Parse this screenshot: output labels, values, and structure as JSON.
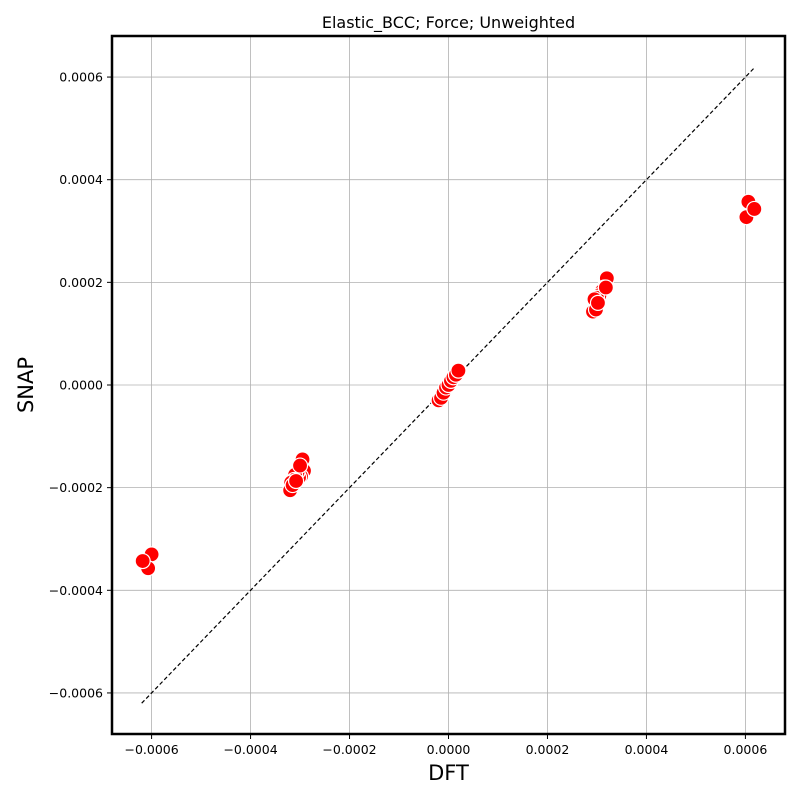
{
  "chart_data": {
    "type": "scatter",
    "title": "Elastic_BCC; Force; Unweighted",
    "xlabel": "DFT",
    "ylabel": "SNAP",
    "xlim": [
      -0.00068,
      0.00068
    ],
    "ylim": [
      -0.00068,
      0.00068
    ],
    "x_ticks": [
      "−0.0006",
      "−0.0004",
      "−0.0002",
      "0.0000",
      "0.0002",
      "0.0004",
      "0.0006"
    ],
    "y_ticks": [
      "−0.0006",
      "−0.0004",
      "−0.0002",
      "0.0000",
      "0.0002",
      "0.0004",
      "0.0006"
    ],
    "tick_values": [
      -0.0006,
      -0.0004,
      -0.0002,
      0.0,
      0.0002,
      0.0004,
      0.0006
    ],
    "grid": true,
    "marker_color": "#ff0000",
    "marker_edge_color": "#ffffff",
    "reference_line": {
      "style": "dashed",
      "color": "#000000",
      "from": [
        -0.00062,
        -0.00062
      ],
      "to": [
        0.00062,
        0.00062
      ]
    },
    "points": [
      {
        "x": -0.0006,
        "y": -0.00033
      },
      {
        "x": -0.000607,
        "y": -0.000357
      },
      {
        "x": -0.000618,
        "y": -0.000343
      },
      {
        "x": -0.000295,
        "y": -0.000145
      },
      {
        "x": -0.000292,
        "y": -0.000167
      },
      {
        "x": -0.000298,
        "y": -0.000178
      },
      {
        "x": -0.000302,
        "y": -0.00018
      },
      {
        "x": -0.000305,
        "y": -0.00017
      },
      {
        "x": -0.00031,
        "y": -0.000175
      },
      {
        "x": -0.000312,
        "y": -0.000185
      },
      {
        "x": -0.000318,
        "y": -0.00019
      },
      {
        "x": -0.00032,
        "y": -0.000205
      },
      {
        "x": -0.000315,
        "y": -0.000195
      },
      {
        "x": -0.000308,
        "y": -0.000187
      },
      {
        "x": -0.0003,
        "y": -0.000157
      },
      {
        "x": -2e-05,
        "y": -3e-05
      },
      {
        "x": -1.5e-05,
        "y": -2.5e-05
      },
      {
        "x": -1e-05,
        "y": -1.5e-05
      },
      {
        "x": -5e-06,
        "y": -5e-06
      },
      {
        "x": 0.0,
        "y": 0.0
      },
      {
        "x": 5e-06,
        "y": 8e-06
      },
      {
        "x": 1e-05,
        "y": 1.5e-05
      },
      {
        "x": 1.5e-05,
        "y": 2e-05
      },
      {
        "x": 2e-05,
        "y": 2.8e-05
      },
      {
        "x": 0.00032,
        "y": 0.000208
      },
      {
        "x": 0.000315,
        "y": 0.00019
      },
      {
        "x": 0.00031,
        "y": 0.000183
      },
      {
        "x": 0.000305,
        "y": 0.000175
      },
      {
        "x": 0.0003,
        "y": 0.00017
      },
      {
        "x": 0.000295,
        "y": 0.000167
      },
      {
        "x": 0.000292,
        "y": 0.000143
      },
      {
        "x": 0.000298,
        "y": 0.000147
      },
      {
        "x": 0.000302,
        "y": 0.00016
      },
      {
        "x": 0.000318,
        "y": 0.00019
      },
      {
        "x": 0.000606,
        "y": 0.000357
      },
      {
        "x": 0.000602,
        "y": 0.000327
      },
      {
        "x": 0.000618,
        "y": 0.000343
      }
    ]
  }
}
